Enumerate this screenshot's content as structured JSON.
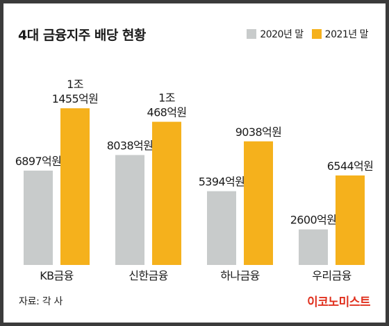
{
  "chart_data": {
    "type": "bar",
    "title": "4대 금융지주 배당 현황",
    "categories": [
      "KB금융",
      "신한금융",
      "하나금융",
      "우리금융"
    ],
    "series": [
      {
        "name": "2020년 말",
        "color": "#c8cbcb",
        "values": [
          6897,
          8038,
          5394,
          2600
        ],
        "labels": [
          [
            "6897억원"
          ],
          [
            "8038억원"
          ],
          [
            "5394억원"
          ],
          [
            "2600억원"
          ]
        ]
      },
      {
        "name": "2021년 말",
        "color": "#f5b11c",
        "values": [
          11455,
          10468,
          9038,
          6544
        ],
        "labels": [
          [
            "1조",
            "1455억원"
          ],
          [
            "1조",
            "468억원"
          ],
          [
            "9038억원"
          ],
          [
            "6544억원"
          ]
        ]
      }
    ],
    "unit": "억원",
    "ylim": [
      0,
      14300
    ],
    "grid": false,
    "legend_position": "top-right"
  },
  "footer": {
    "source": "자료: 각 사",
    "brand": "이코노미스트"
  }
}
